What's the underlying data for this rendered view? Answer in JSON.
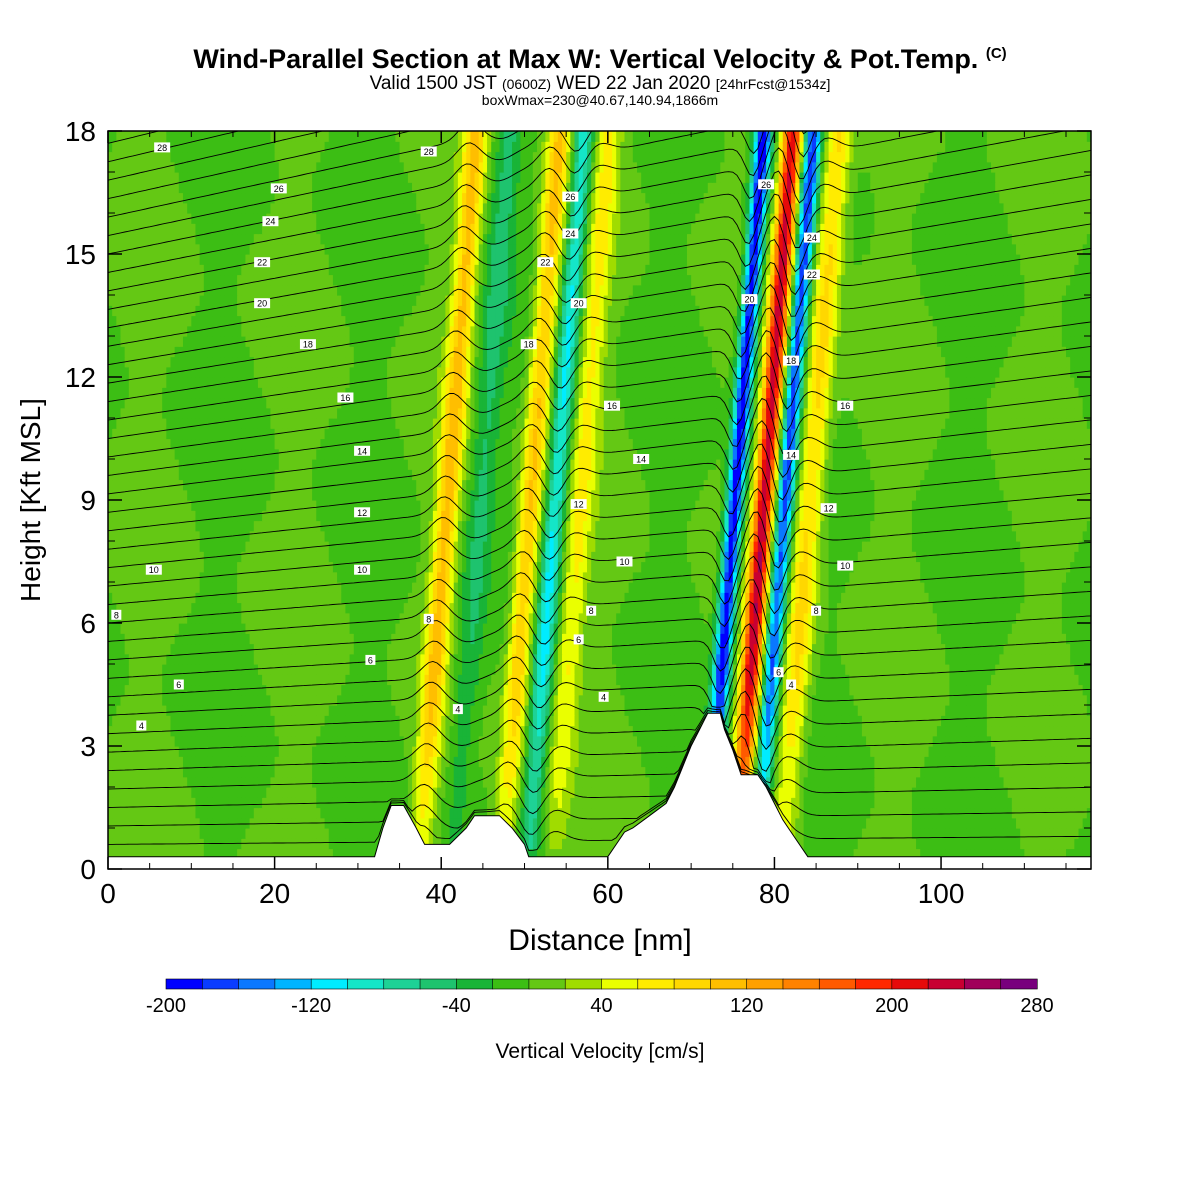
{
  "title": {
    "main": "Wind-Parallel Section at Max W: Vertical Velocity & Pot.Temp.",
    "copyright": "(C)",
    "valid_prefix": "Valid 1500 JST",
    "valid_zulu": "(0600Z)",
    "valid_suffix": "WED 22 Jan 2020",
    "forecast": "[24hrFcst@1534z]",
    "box_info": "boxWmax=230@40.67,140.94,1866m"
  },
  "colors": {
    "terrain": "#ffffff",
    "contour": "#000000"
  },
  "chart_data": {
    "type": "heatmap",
    "xlabel": "Distance [nm]",
    "ylabel": "Height [Kft MSL]",
    "xlim": [
      0,
      118
    ],
    "ylim": [
      0,
      18
    ],
    "x_ticks": [
      "0",
      "20",
      "40",
      "60",
      "80",
      "100"
    ],
    "y_ticks": [
      "0",
      "3",
      "6",
      "9",
      "12",
      "15",
      "18"
    ],
    "colorbar": {
      "label": "Vertical Velocity [cm/s]",
      "tick_labels": [
        "-200",
        "-120",
        "-40",
        "40",
        "120",
        "200",
        "280"
      ],
      "min": -200,
      "max": 280,
      "step": 20,
      "colors": [
        "#0000ff",
        "#0a3cff",
        "#0a78ff",
        "#00b4ff",
        "#00ecff",
        "#14e6c8",
        "#1ed296",
        "#1ec36e",
        "#19b437",
        "#3cbe14",
        "#64c814",
        "#a0dc00",
        "#eaff00",
        "#ffec00",
        "#ffd700",
        "#ffbe00",
        "#ffa000",
        "#ff8200",
        "#ff5a00",
        "#ff2800",
        "#e60a0a",
        "#c80032",
        "#a0005a",
        "#78007d"
      ]
    },
    "terrain_kft": [
      [
        0,
        0.3
      ],
      [
        32,
        0.3
      ],
      [
        33,
        1.0
      ],
      [
        34,
        1.55
      ],
      [
        35.5,
        1.55
      ],
      [
        37,
        1.0
      ],
      [
        38,
        0.6
      ],
      [
        41,
        0.6
      ],
      [
        43,
        1.0
      ],
      [
        44,
        1.3
      ],
      [
        47,
        1.3
      ],
      [
        48.5,
        1.0
      ],
      [
        50,
        0.6
      ],
      [
        50.5,
        0.3
      ],
      [
        60,
        0.3
      ],
      [
        61,
        0.6
      ],
      [
        62,
        0.9
      ],
      [
        63,
        1.0
      ],
      [
        65,
        1.3
      ],
      [
        67,
        1.6
      ],
      [
        68,
        2.0
      ],
      [
        69,
        2.5
      ],
      [
        70,
        3.0
      ],
      [
        71,
        3.4
      ],
      [
        72,
        3.8
      ],
      [
        73.5,
        3.8
      ],
      [
        74,
        3.4
      ],
      [
        75,
        2.9
      ],
      [
        76,
        2.3
      ],
      [
        78,
        2.3
      ],
      [
        79,
        2.0
      ],
      [
        80,
        1.6
      ],
      [
        81,
        1.2
      ],
      [
        82,
        0.9
      ],
      [
        83,
        0.6
      ],
      [
        84,
        0.3
      ],
      [
        118,
        0.3
      ]
    ],
    "w_cm_s": [
      {
        "x": 38.5,
        "w": 105,
        "sigma": 1.4
      },
      {
        "x": 42.5,
        "w": -45,
        "sigma": 1.6
      },
      {
        "x": 48.5,
        "w": 105,
        "sigma": 1.4
      },
      {
        "x": 51.5,
        "w": -105,
        "sigma": 1.2
      },
      {
        "x": 54.5,
        "w": 60,
        "sigma": 1.5
      },
      {
        "x": 73.0,
        "w": -200,
        "sigma": 1.0
      },
      {
        "x": 76.5,
        "w": 230,
        "sigma": 1.2
      },
      {
        "x": 79.0,
        "w": -170,
        "sigma": 1.0
      },
      {
        "x": 82.0,
        "w": 90,
        "sigma": 1.6
      }
    ],
    "theta_labels": [
      {
        "value": "4",
        "x": 4,
        "y": 3.5
      },
      {
        "value": "6",
        "x": 8.5,
        "y": 4.5
      },
      {
        "value": "8",
        "x": 1,
        "y": 6.2
      },
      {
        "value": "10",
        "x": 5.5,
        "y": 7.3
      },
      {
        "value": "10",
        "x": 30.5,
        "y": 7.3
      },
      {
        "value": "12",
        "x": 30.5,
        "y": 8.7
      },
      {
        "value": "14",
        "x": 30.5,
        "y": 10.2
      },
      {
        "value": "16",
        "x": 28.5,
        "y": 11.5
      },
      {
        "value": "18",
        "x": 24,
        "y": 12.8
      },
      {
        "value": "20",
        "x": 18.5,
        "y": 13.8
      },
      {
        "value": "22",
        "x": 18.5,
        "y": 14.8
      },
      {
        "value": "24",
        "x": 19.5,
        "y": 15.8
      },
      {
        "value": "26",
        "x": 20.5,
        "y": 16.6
      },
      {
        "value": "28",
        "x": 6.5,
        "y": 17.6
      },
      {
        "value": "6",
        "x": 31.5,
        "y": 5.1
      },
      {
        "value": "4",
        "x": 42,
        "y": 3.9
      },
      {
        "value": "8",
        "x": 38.5,
        "y": 6.1
      },
      {
        "value": "28",
        "x": 38.5,
        "y": 17.5
      },
      {
        "value": "26",
        "x": 55.5,
        "y": 16.4
      },
      {
        "value": "24",
        "x": 55.5,
        "y": 15.5
      },
      {
        "value": "22",
        "x": 52.5,
        "y": 14.8
      },
      {
        "value": "20",
        "x": 56.5,
        "y": 13.8
      },
      {
        "value": "18",
        "x": 50.5,
        "y": 12.8
      },
      {
        "value": "16",
        "x": 60.5,
        "y": 11.3
      },
      {
        "value": "14",
        "x": 64,
        "y": 10.0
      },
      {
        "value": "12",
        "x": 56.5,
        "y": 8.9
      },
      {
        "value": "10",
        "x": 62,
        "y": 7.5
      },
      {
        "value": "8",
        "x": 58,
        "y": 6.3
      },
      {
        "value": "6",
        "x": 56.5,
        "y": 5.6
      },
      {
        "value": "4",
        "x": 59.5,
        "y": 4.2
      },
      {
        "value": "26",
        "x": 79,
        "y": 16.7
      },
      {
        "value": "24",
        "x": 84.5,
        "y": 15.4
      },
      {
        "value": "22",
        "x": 84.5,
        "y": 14.5
      },
      {
        "value": "20",
        "x": 77,
        "y": 13.9
      },
      {
        "value": "18",
        "x": 82,
        "y": 12.4
      },
      {
        "value": "16",
        "x": 88.5,
        "y": 11.3
      },
      {
        "value": "14",
        "x": 82,
        "y": 10.1
      },
      {
        "value": "12",
        "x": 86.5,
        "y": 8.8
      },
      {
        "value": "10",
        "x": 88.5,
        "y": 7.4
      },
      {
        "value": "8",
        "x": 85,
        "y": 6.3
      },
      {
        "value": "6",
        "x": 80.5,
        "y": 4.8
      },
      {
        "value": "4",
        "x": 82,
        "y": 4.5
      }
    ]
  }
}
